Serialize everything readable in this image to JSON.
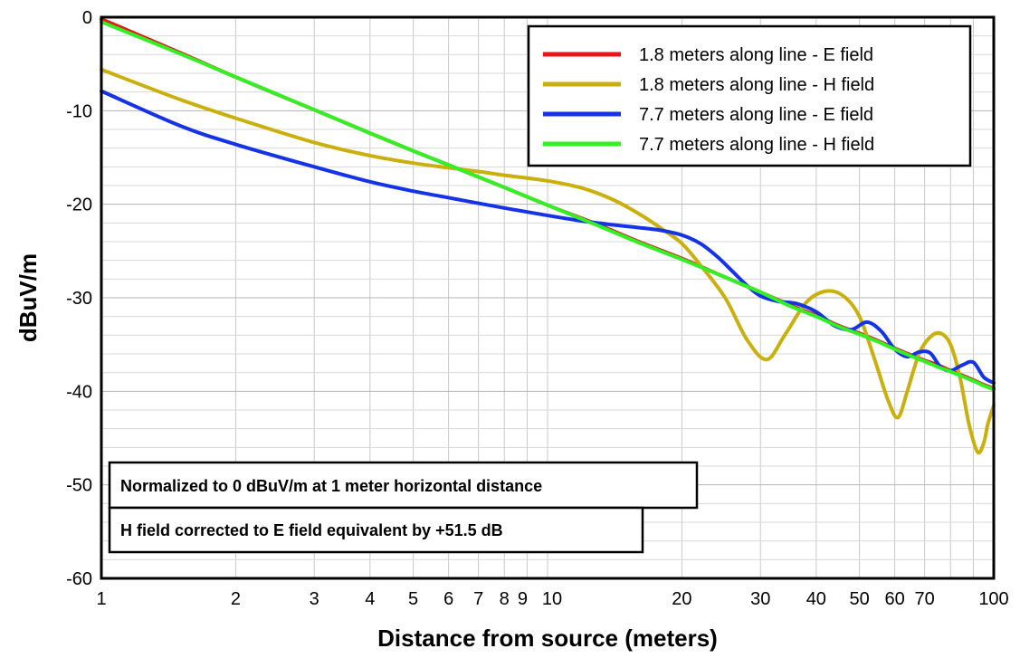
{
  "chart_data": {
    "type": "line",
    "title": "",
    "xlabel": "Distance from source (meters)",
    "ylabel": "dBuV/m",
    "xscale": "log",
    "xlim": [
      1,
      100
    ],
    "ylim": [
      -60,
      0
    ],
    "grid": true,
    "legend_placement": "top-right",
    "x_ticks": [
      1,
      2,
      3,
      4,
      5,
      6,
      7,
      8,
      9,
      10,
      20,
      30,
      40,
      50,
      60,
      70,
      100
    ],
    "x_tick_labels": [
      "1",
      "2",
      "3",
      "4",
      "5",
      "6",
      "7",
      "8",
      "9",
      "10",
      "20",
      "30",
      "40",
      "50",
      "60",
      "70",
      "100"
    ],
    "y_ticks": [
      0,
      -10,
      -20,
      -30,
      -40,
      -50,
      -60
    ],
    "y_tick_labels": [
      "0",
      "-10",
      "-20",
      "-30",
      "-40",
      "-50",
      "-60"
    ],
    "series": [
      {
        "name": "1.8 meters along line - E field",
        "color": "#e8161b",
        "x": [
          1,
          1.5,
          2,
          3,
          4,
          5,
          6,
          8,
          10,
          13,
          16,
          20,
          25,
          30,
          35,
          40,
          45,
          50,
          55,
          60,
          65,
          70,
          75,
          80,
          85,
          90,
          95,
          100
        ],
        "y": [
          -0.2,
          -3.8,
          -6.4,
          -9.9,
          -12.4,
          -14.3,
          -15.8,
          -18.2,
          -20.1,
          -22.2,
          -24.0,
          -25.8,
          -27.8,
          -29.4,
          -30.8,
          -31.9,
          -33.0,
          -33.8,
          -34.6,
          -35.4,
          -36.1,
          -36.7,
          -37.2,
          -37.8,
          -38.3,
          -38.8,
          -39.3,
          -39.7
        ]
      },
      {
        "name": "1.8 meters along line - H field",
        "color": "#c9b00e",
        "x": [
          1,
          1.5,
          2,
          3,
          4,
          5,
          6,
          7,
          8,
          10,
          12,
          14,
          16,
          18,
          20,
          22,
          25,
          28,
          31,
          34,
          38,
          42,
          46,
          50,
          54,
          58,
          61,
          64,
          68,
          72,
          76,
          80,
          84,
          88,
          92,
          95,
          97,
          100
        ],
        "y": [
          -5.6,
          -8.8,
          -10.8,
          -13.4,
          -14.8,
          -15.6,
          -16.1,
          -16.5,
          -16.9,
          -17.5,
          -18.3,
          -19.5,
          -21.0,
          -22.6,
          -24.2,
          -26.5,
          -30.0,
          -34.5,
          -36.6,
          -34.0,
          -30.5,
          -29.3,
          -29.8,
          -32.0,
          -36.5,
          -41.0,
          -42.8,
          -40.0,
          -36.0,
          -34.2,
          -33.8,
          -35.0,
          -38.5,
          -43.5,
          -46.5,
          -45.5,
          -43.5,
          -41.5
        ]
      },
      {
        "name": "7.7 meters along line - E field",
        "color": "#1533e6",
        "x": [
          1,
          1.5,
          2,
          3,
          4,
          5,
          6,
          8,
          10,
          12,
          14,
          16,
          18,
          20,
          22,
          24,
          26,
          28,
          30,
          33,
          36,
          40,
          44,
          48,
          52,
          56,
          60,
          64,
          68,
          72,
          76,
          80,
          85,
          90,
          95,
          100
        ],
        "y": [
          -7.9,
          -11.6,
          -13.6,
          -16.0,
          -17.6,
          -18.6,
          -19.3,
          -20.4,
          -21.2,
          -21.8,
          -22.2,
          -22.5,
          -22.8,
          -23.3,
          -24.2,
          -25.6,
          -27.2,
          -28.7,
          -29.8,
          -30.4,
          -30.6,
          -31.5,
          -33.0,
          -33.4,
          -32.6,
          -33.6,
          -35.5,
          -36.3,
          -35.8,
          -35.9,
          -37.4,
          -37.8,
          -37.2,
          -36.9,
          -38.5,
          -39.1
        ]
      },
      {
        "name": "7.7 meters along line - H field",
        "color": "#33f024",
        "x": [
          1,
          1.5,
          2,
          3,
          4,
          5,
          6,
          8,
          10,
          13,
          16,
          20,
          25,
          30,
          35,
          40,
          45,
          50,
          55,
          60,
          65,
          70,
          75,
          80,
          85,
          90,
          95,
          100
        ],
        "y": [
          -0.5,
          -3.9,
          -6.4,
          -9.9,
          -12.4,
          -14.3,
          -15.8,
          -18.2,
          -20.1,
          -22.3,
          -24.1,
          -25.9,
          -27.8,
          -29.4,
          -30.9,
          -32.0,
          -33.1,
          -33.9,
          -34.7,
          -35.5,
          -36.2,
          -36.8,
          -37.4,
          -37.9,
          -38.4,
          -38.9,
          -39.4,
          -39.8
        ]
      }
    ],
    "annotations": [
      "Normalized to 0 dBuV/m at 1 meter horizontal distance",
      "H field corrected to E field equivalent by +51.5 dB"
    ]
  }
}
